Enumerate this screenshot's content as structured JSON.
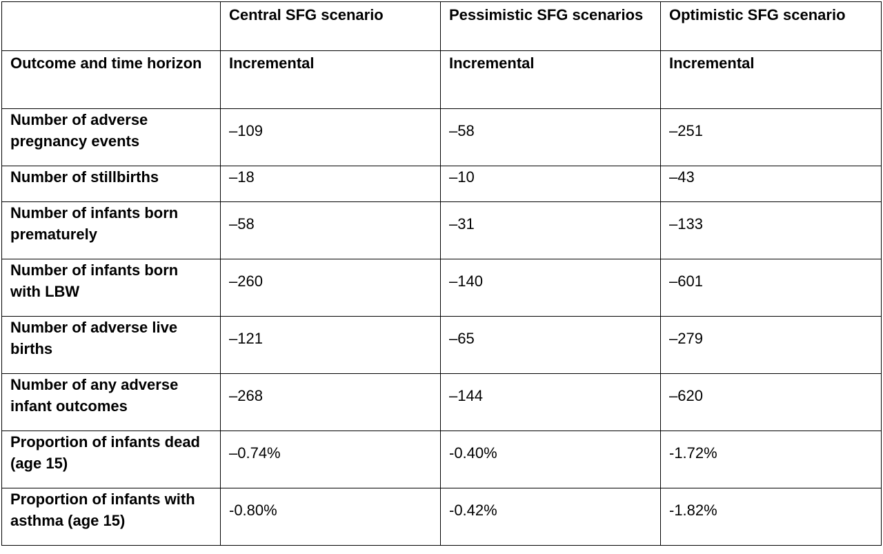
{
  "header": {
    "scenarios": [
      "Central SFG scenario",
      "Pessimistic SFG scenarios",
      "Optimistic SFG scenario"
    ],
    "row_label_header": "Outcome and time horizon",
    "sub": [
      "Incremental",
      "Incremental",
      "Incremental"
    ]
  },
  "rows": [
    {
      "label": "Number of adverse pregnancy events",
      "values": [
        "–109",
        "–58",
        "–251"
      ]
    },
    {
      "label": "Number of stillbirths",
      "values": [
        "–18",
        "–10",
        "–43"
      ]
    },
    {
      "label": "Number of infants born prematurely",
      "values": [
        "–58",
        "–31",
        "–133"
      ]
    },
    {
      "label": "Number of infants born with LBW",
      "values": [
        "–260",
        "–140",
        "–601"
      ]
    },
    {
      "label": "Number of adverse live births",
      "values": [
        "–121",
        "–65",
        "–279"
      ]
    },
    {
      "label": "Number of any adverse infant outcomes",
      "values": [
        "–268",
        "–144",
        "–620"
      ]
    },
    {
      "label": "Proportion of infants dead (age 15)",
      "values": [
        "–0.74%",
        "-0.40%",
        "-1.72%"
      ]
    },
    {
      "label": "Proportion of infants with asthma (age 15)",
      "values": [
        "-0.80%",
        "-0.42%",
        "-1.82%"
      ]
    }
  ]
}
